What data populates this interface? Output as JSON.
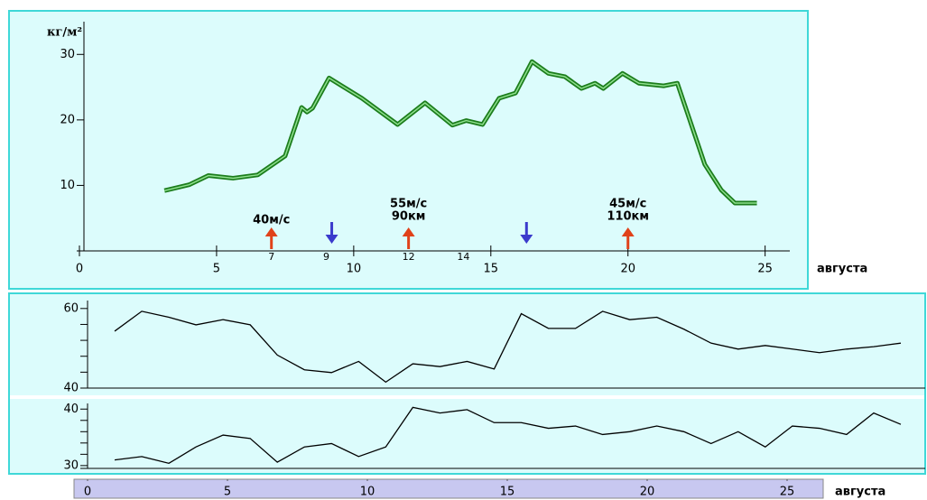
{
  "chart_data": [
    {
      "type": "line",
      "ylabel": "кг/м²",
      "xlabel": "августа",
      "x": [
        3.1,
        4.0,
        4.7,
        5.6,
        6.5,
        7.5,
        8.1,
        8.3,
        8.5,
        9.1,
        10.3,
        11.6,
        12.6,
        13.6,
        14.1,
        14.7,
        15.3,
        15.9,
        16.5,
        17.1,
        17.7,
        18.3,
        18.8,
        19.1,
        19.8,
        20.4,
        21.3,
        21.8,
        22.8,
        23.4,
        23.9,
        24.7
      ],
      "series": [
        {
          "color": "#1c7d1c",
          "values": [
            9.2,
            10.1,
            11.5,
            11.1,
            11.6,
            14.5,
            21.9,
            21.2,
            21.8,
            26.4,
            23.3,
            19.3,
            22.6,
            19.2,
            19.9,
            19.3,
            23.3,
            24.1,
            28.9,
            27.1,
            26.6,
            24.8,
            25.6,
            24.8,
            27.1,
            25.6,
            25.2,
            25.6,
            13.2,
            9.3,
            7.3,
            7.3
          ]
        }
      ],
      "xlim": [
        0,
        25.9
      ],
      "xticks": [
        0,
        5,
        10,
        15,
        20,
        25
      ],
      "ylim": [
        0,
        35
      ],
      "yticks": [
        10,
        20,
        30
      ],
      "date_labels": [
        7,
        9,
        12,
        14
      ],
      "arrows": [
        {
          "x": 7,
          "direction": "up",
          "color": "#e0421a",
          "label": [
            "40м/с"
          ]
        },
        {
          "x": 9.2,
          "direction": "down",
          "color": "#3a3acc"
        },
        {
          "x": 12,
          "direction": "up",
          "color": "#e0421a",
          "label": [
            "55м/с",
            "90км"
          ]
        },
        {
          "x": 16.3,
          "direction": "down",
          "color": "#3a3acc"
        },
        {
          "x": 20,
          "direction": "up",
          "color": "#e0421a",
          "label": [
            "45м/с",
            "110км"
          ]
        }
      ]
    },
    {
      "type": "line",
      "x": [
        1,
        2,
        3,
        4,
        5,
        6,
        7,
        8,
        9,
        10,
        11,
        12,
        13,
        14,
        15,
        16,
        17,
        18,
        19,
        20,
        21,
        22,
        23,
        24,
        25,
        26,
        27,
        28,
        29,
        30
      ],
      "series": [
        {
          "color": "#000000",
          "values": [
            54.3,
            59.3,
            57.8,
            55.9,
            57.2,
            55.9,
            48.3,
            44.6,
            43.9,
            46.7,
            41.5,
            46.1,
            45.4,
            46.7,
            44.8,
            58.7,
            55.0,
            55.0,
            59.3,
            57.2,
            57.8,
            54.8,
            51.3,
            49.8,
            50.7,
            49.8,
            48.9,
            49.8,
            50.4,
            51.3
          ]
        }
      ],
      "xlim": [
        0,
        30.9
      ],
      "ylim": [
        40,
        62
      ],
      "yticks": [
        40,
        60
      ],
      "yminor": [
        44,
        48,
        52,
        56
      ]
    },
    {
      "type": "line",
      "x": [
        1,
        2,
        3,
        4,
        5,
        6,
        7,
        8,
        9,
        10,
        11,
        12,
        13,
        14,
        15,
        16,
        17,
        18,
        19,
        20,
        21,
        22,
        23,
        24,
        25,
        26,
        27,
        28,
        29,
        30
      ],
      "series": [
        {
          "color": "#000000",
          "values": [
            31.0,
            31.6,
            30.4,
            33.3,
            35.4,
            34.8,
            30.6,
            33.3,
            33.9,
            31.6,
            33.3,
            40.3,
            39.3,
            39.9,
            37.6,
            37.6,
            36.6,
            37.0,
            35.5,
            36.0,
            37.0,
            36.0,
            33.9,
            36.0,
            33.3,
            37.0,
            36.6,
            35.5,
            39.3,
            37.3
          ]
        }
      ],
      "xlim": [
        0,
        30.9
      ],
      "ylim": [
        29.5,
        41
      ],
      "yticks": [
        30,
        40
      ],
      "yminor": [
        32,
        34,
        36,
        38
      ],
      "xticks": [
        0,
        5,
        10,
        15,
        20,
        25
      ],
      "xlabel": "августа"
    }
  ]
}
